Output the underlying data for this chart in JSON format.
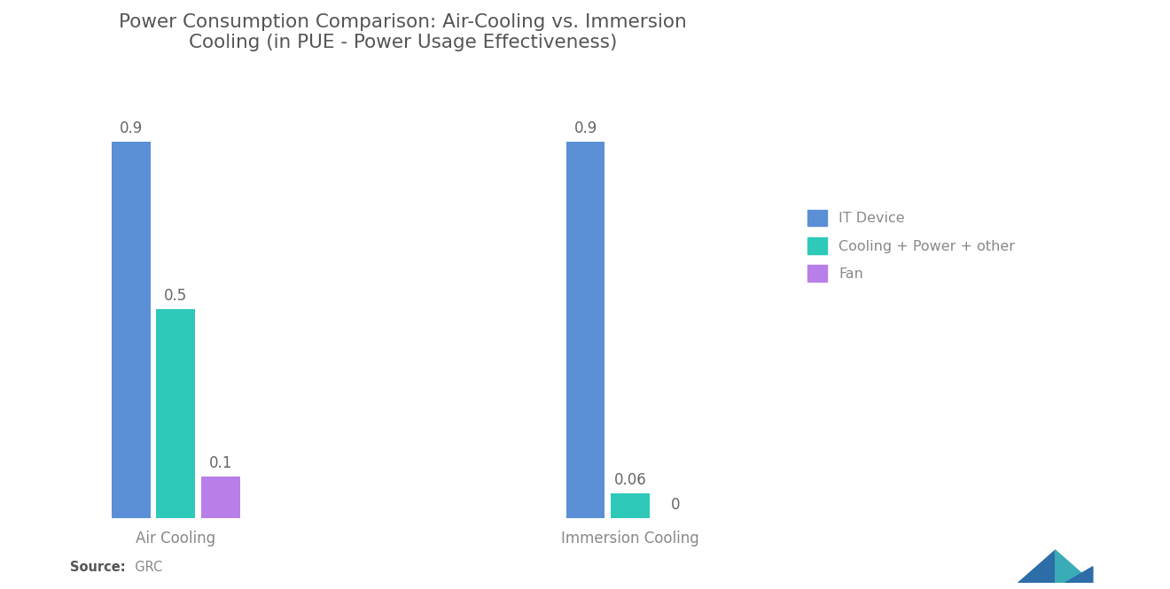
{
  "title": "Power Consumption Comparison: Air-Cooling vs. Immersion\nCooling (in PUE - Power Usage Effectiveness)",
  "groups": [
    "Air Cooling",
    "Immersion Cooling"
  ],
  "categories": [
    "IT Device",
    "Cooling + Power + other",
    "Fan"
  ],
  "values": {
    "Air Cooling": [
      0.9,
      0.5,
      0.1
    ],
    "Immersion Cooling": [
      0.9,
      0.06,
      0.0
    ]
  },
  "bar_colors": [
    "#5B8FD6",
    "#2EC9B8",
    "#B87FE8"
  ],
  "background_color": "#FFFFFF",
  "title_color": "#555555",
  "label_color": "#888888",
  "value_color": "#666666",
  "source_bold": "Source:",
  "source_rest": "  GRC",
  "ylim": [
    0,
    1.05
  ],
  "bar_width": 0.12,
  "title_fontsize": 15.5,
  "label_fontsize": 12,
  "legend_fontsize": 11.5,
  "value_fontsize": 12
}
